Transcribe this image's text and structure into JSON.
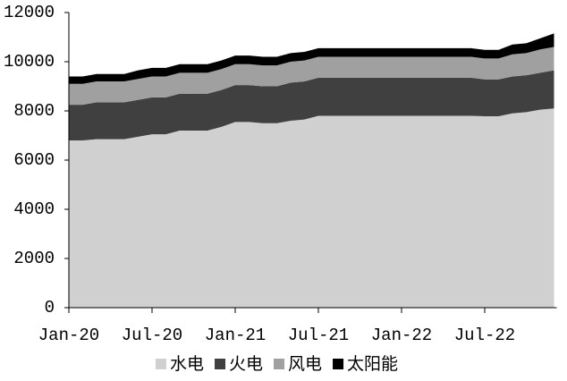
{
  "chart_data": {
    "type": "stacked_area",
    "categories": [
      "Jan-20",
      null,
      null,
      null,
      null,
      null,
      "Jul-20",
      null,
      null,
      null,
      null,
      null,
      "Jan-21",
      null,
      null,
      null,
      null,
      null,
      "Jul-21",
      null,
      null,
      null,
      null,
      null,
      "Jan-22",
      null,
      null,
      null,
      null,
      null,
      "Jul-22",
      null,
      null,
      null,
      null,
      null
    ],
    "series": [
      {
        "name": "水电",
        "color": "#d0d0d0",
        "values": [
          6800,
          6800,
          6850,
          6850,
          6850,
          6950,
          7050,
          7050,
          7200,
          7200,
          7200,
          7350,
          7550,
          7550,
          7500,
          7500,
          7600,
          7650,
          7800,
          7800,
          7800,
          7800,
          7800,
          7800,
          7800,
          7800,
          7800,
          7800,
          7800,
          7800,
          7780,
          7780,
          7900,
          7950,
          8050,
          8100
        ]
      },
      {
        "name": "火电",
        "color": "#404040",
        "values": [
          1450,
          1450,
          1500,
          1500,
          1500,
          1500,
          1500,
          1500,
          1500,
          1500,
          1500,
          1500,
          1500,
          1500,
          1500,
          1500,
          1550,
          1550,
          1550,
          1550,
          1550,
          1550,
          1550,
          1550,
          1550,
          1550,
          1550,
          1550,
          1550,
          1550,
          1500,
          1500,
          1500,
          1500,
          1500,
          1550
        ]
      },
      {
        "name": "风电",
        "color": "#a0a0a0",
        "values": [
          850,
          850,
          850,
          850,
          850,
          850,
          850,
          850,
          850,
          850,
          850,
          850,
          850,
          850,
          850,
          850,
          850,
          850,
          850,
          850,
          850,
          850,
          850,
          850,
          850,
          850,
          850,
          850,
          850,
          850,
          850,
          850,
          900,
          900,
          950,
          950
        ]
      },
      {
        "name": "太阳能",
        "color": "#000000",
        "values": [
          300,
          300,
          300,
          300,
          300,
          350,
          350,
          350,
          350,
          350,
          350,
          350,
          350,
          350,
          350,
          350,
          350,
          350,
          350,
          350,
          350,
          350,
          350,
          350,
          350,
          350,
          350,
          350,
          350,
          350,
          350,
          350,
          400,
          400,
          450,
          550
        ]
      }
    ],
    "ylim": [
      0,
      12000
    ],
    "yticks": [
      0,
      2000,
      4000,
      6000,
      8000,
      10000,
      12000
    ]
  }
}
